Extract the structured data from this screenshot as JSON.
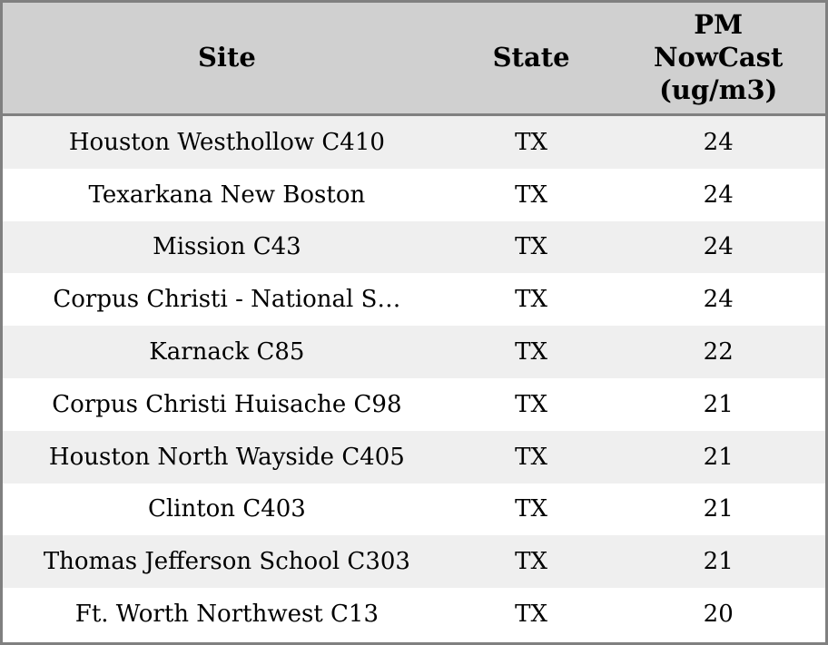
{
  "chart_data": {
    "type": "table",
    "columns": [
      "Site",
      "State",
      "PM NowCast (ug/m3)"
    ],
    "rows": [
      {
        "site": "Houston Westhollow C410",
        "state": "TX",
        "pm_nowcast": 24
      },
      {
        "site": "Texarkana New Boston",
        "state": "TX",
        "pm_nowcast": 24
      },
      {
        "site": "Mission C43",
        "state": "TX",
        "pm_nowcast": 24
      },
      {
        "site": "Corpus Christi - National S…",
        "state": "TX",
        "pm_nowcast": 24
      },
      {
        "site": "Karnack C85",
        "state": "TX",
        "pm_nowcast": 22
      },
      {
        "site": "Corpus Christi Huisache C98",
        "state": "TX",
        "pm_nowcast": 21
      },
      {
        "site": "Houston North Wayside C405",
        "state": "TX",
        "pm_nowcast": 21
      },
      {
        "site": "Clinton C403",
        "state": "TX",
        "pm_nowcast": 21
      },
      {
        "site": "Thomas Jefferson School C303",
        "state": "TX",
        "pm_nowcast": 21
      },
      {
        "site": "Ft. Worth Northwest C13",
        "state": "TX",
        "pm_nowcast": 20
      }
    ]
  },
  "styles": {
    "header_bg": "#d0d0d0",
    "row_stripe_bg": "#efefef",
    "row_bg": "#ffffff",
    "border_color": "#808080",
    "text_color": "#000000"
  }
}
